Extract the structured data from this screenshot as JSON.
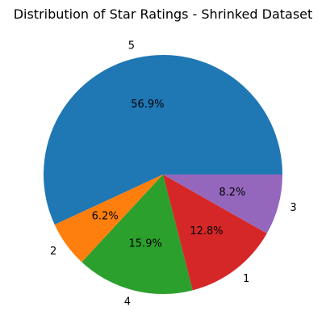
{
  "chart_data": {
    "type": "pie",
    "title": "Distribution of Star Ratings - Shrinked Dataset",
    "start_angle_deg": 0,
    "direction": "counterclockwise",
    "slices": [
      {
        "label": "5",
        "value": 56.9,
        "pct_label": "56.9%",
        "color": "#1f77b4"
      },
      {
        "label": "2",
        "value": 6.2,
        "pct_label": "6.2%",
        "color": "#ff7f0e"
      },
      {
        "label": "4",
        "value": 15.9,
        "pct_label": "15.9%",
        "color": "#2ca02c"
      },
      {
        "label": "1",
        "value": 12.8,
        "pct_label": "12.8%",
        "color": "#d62728"
      },
      {
        "label": "3",
        "value": 8.2,
        "pct_label": "8.2%",
        "color": "#9467bd"
      }
    ]
  }
}
